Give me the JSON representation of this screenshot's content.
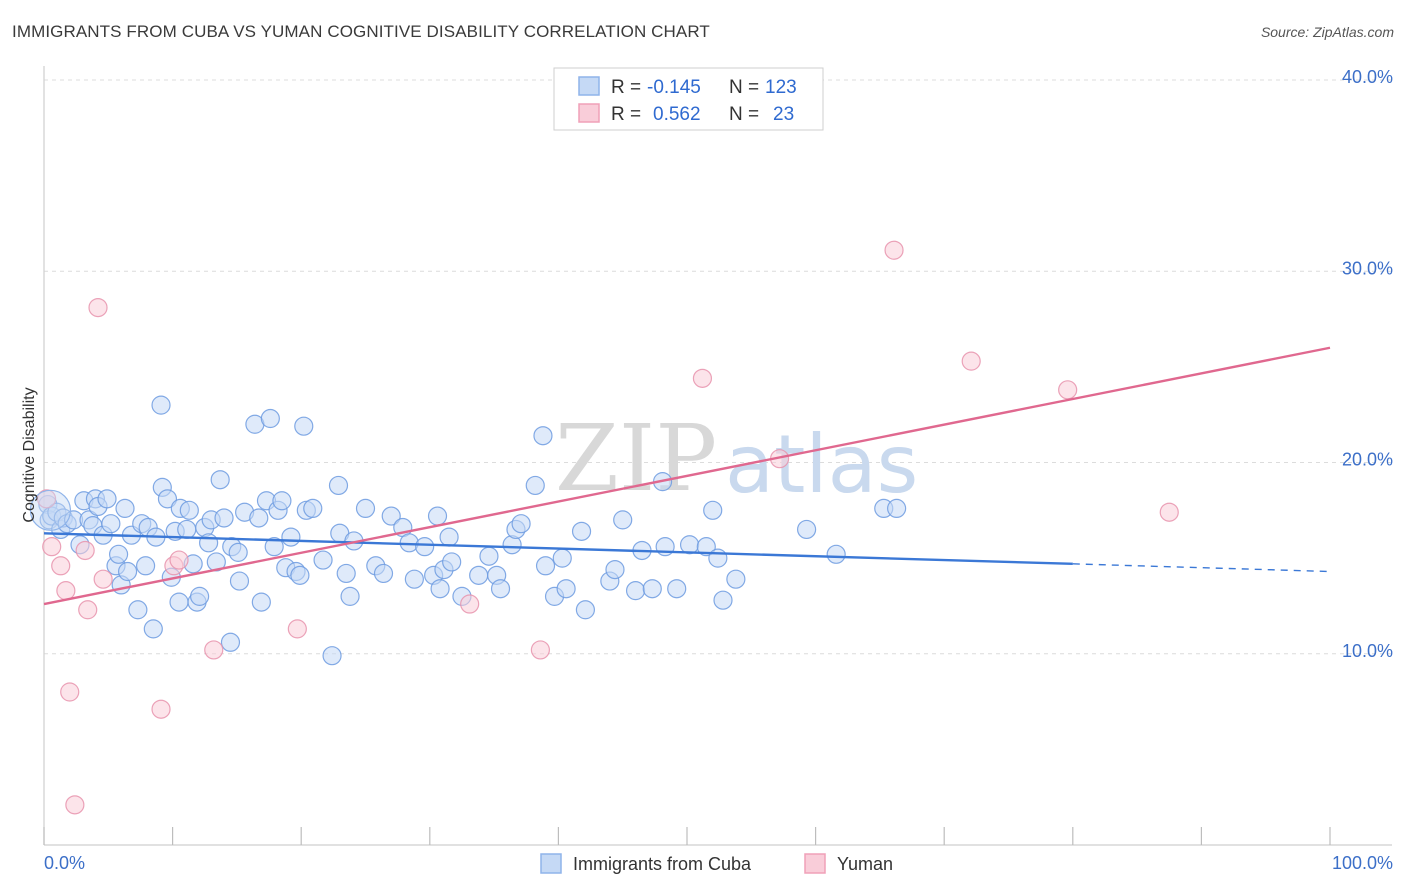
{
  "header": {
    "title": "IMMIGRANTS FROM CUBA VS YUMAN COGNITIVE DISABILITY CORRELATION CHART",
    "source": "Source: ZipAtlas.com"
  },
  "watermark": {
    "zip": "ZIP",
    "atlas": "atlas"
  },
  "legend": {
    "rows": [
      {
        "r_label": "R =",
        "r_value": "-0.145",
        "n_label": "N =",
        "n_value": "123",
        "color": "#8fb4ea",
        "fill": "#c5d9f5"
      },
      {
        "r_label": "R =",
        "r_value": "0.562",
        "n_label": "N =",
        "n_value": "23",
        "color": "#f0a0b8",
        "fill": "#f9cdd9"
      }
    ]
  },
  "bottom_legend": [
    {
      "label": "Immigrants from Cuba",
      "color": "#8fb4ea",
      "fill": "#c5d9f5"
    },
    {
      "label": "Yuman",
      "color": "#f0a0b8",
      "fill": "#f9cdd9"
    }
  ],
  "chart_data": {
    "type": "scatter",
    "title": "IMMIGRANTS FROM CUBA VS YUMAN COGNITIVE DISABILITY CORRELATION CHART",
    "xlabel": "",
    "ylabel": "Cognitive Disability",
    "xlim": [
      0,
      100
    ],
    "ylim": [
      0,
      40
    ],
    "x_tick_labels": [
      "0.0%",
      "100.0%"
    ],
    "y_ticks": [
      10,
      20,
      30,
      40
    ],
    "y_tick_labels": [
      "10.0%",
      "20.0%",
      "30.0%",
      "40.0%"
    ],
    "grid": true,
    "series": [
      {
        "name": "Immigrants from Cuba",
        "color": "#6d9be0",
        "fill": "#c5d9f5",
        "trend": {
          "x0": 0,
          "y0": 16.3,
          "x1": 80,
          "y1": 14.7,
          "dash_to_x": 100,
          "dash_to_y": 14.3,
          "color": "#3b78d6"
        },
        "points": [
          [
            0.3,
            17.8
          ],
          [
            0.4,
            17.0
          ],
          [
            0.6,
            17.2
          ],
          [
            1.0,
            17.4
          ],
          [
            1.3,
            16.5
          ],
          [
            1.5,
            17.1
          ],
          [
            1.8,
            16.8
          ],
          [
            2.3,
            17.0
          ],
          [
            2.8,
            15.7
          ],
          [
            3.1,
            18.0
          ],
          [
            3.5,
            17.0
          ],
          [
            3.8,
            16.7
          ],
          [
            4.0,
            18.1
          ],
          [
            4.2,
            17.7
          ],
          [
            4.6,
            16.2
          ],
          [
            4.9,
            18.1
          ],
          [
            5.2,
            16.8
          ],
          [
            5.6,
            14.6
          ],
          [
            5.8,
            15.2
          ],
          [
            6.0,
            13.6
          ],
          [
            6.3,
            17.6
          ],
          [
            6.5,
            14.3
          ],
          [
            6.8,
            16.2
          ],
          [
            7.3,
            12.3
          ],
          [
            7.6,
            16.8
          ],
          [
            7.9,
            14.6
          ],
          [
            8.1,
            16.6
          ],
          [
            8.5,
            11.3
          ],
          [
            8.7,
            16.1
          ],
          [
            9.1,
            23.0
          ],
          [
            9.2,
            18.7
          ],
          [
            9.6,
            18.1
          ],
          [
            9.9,
            14.0
          ],
          [
            10.2,
            16.4
          ],
          [
            10.5,
            12.7
          ],
          [
            10.6,
            17.6
          ],
          [
            11.1,
            16.5
          ],
          [
            11.3,
            17.5
          ],
          [
            11.6,
            14.7
          ],
          [
            11.9,
            12.7
          ],
          [
            12.1,
            13.0
          ],
          [
            12.5,
            16.6
          ],
          [
            12.8,
            15.8
          ],
          [
            13.0,
            17.0
          ],
          [
            13.4,
            14.8
          ],
          [
            13.7,
            19.1
          ],
          [
            14.0,
            17.1
          ],
          [
            14.5,
            10.6
          ],
          [
            14.6,
            15.6
          ],
          [
            15.1,
            15.3
          ],
          [
            15.2,
            13.8
          ],
          [
            15.6,
            17.4
          ],
          [
            16.4,
            22.0
          ],
          [
            16.7,
            17.1
          ],
          [
            16.9,
            12.7
          ],
          [
            17.3,
            18.0
          ],
          [
            17.6,
            22.3
          ],
          [
            17.9,
            15.6
          ],
          [
            18.2,
            17.5
          ],
          [
            18.5,
            18.0
          ],
          [
            18.8,
            14.5
          ],
          [
            19.2,
            16.1
          ],
          [
            19.6,
            14.3
          ],
          [
            19.9,
            14.1
          ],
          [
            20.2,
            21.9
          ],
          [
            20.4,
            17.5
          ],
          [
            20.9,
            17.6
          ],
          [
            21.7,
            14.9
          ],
          [
            22.4,
            9.9
          ],
          [
            22.9,
            18.8
          ],
          [
            23.0,
            16.3
          ],
          [
            23.5,
            14.2
          ],
          [
            23.8,
            13.0
          ],
          [
            24.1,
            15.9
          ],
          [
            25.0,
            17.6
          ],
          [
            25.8,
            14.6
          ],
          [
            26.4,
            14.2
          ],
          [
            27.0,
            17.2
          ],
          [
            27.9,
            16.6
          ],
          [
            28.4,
            15.8
          ],
          [
            28.8,
            13.9
          ],
          [
            29.6,
            15.6
          ],
          [
            30.3,
            14.1
          ],
          [
            30.6,
            17.2
          ],
          [
            30.8,
            13.4
          ],
          [
            31.1,
            14.4
          ],
          [
            31.5,
            16.1
          ],
          [
            31.7,
            14.8
          ],
          [
            32.5,
            13.0
          ],
          [
            33.8,
            14.1
          ],
          [
            34.6,
            15.1
          ],
          [
            35.2,
            14.1
          ],
          [
            35.5,
            13.4
          ],
          [
            36.4,
            15.7
          ],
          [
            36.7,
            16.5
          ],
          [
            37.1,
            16.8
          ],
          [
            38.2,
            18.8
          ],
          [
            38.8,
            21.4
          ],
          [
            39.0,
            14.6
          ],
          [
            39.7,
            13.0
          ],
          [
            40.3,
            15.0
          ],
          [
            40.6,
            13.4
          ],
          [
            41.8,
            16.4
          ],
          [
            42.1,
            12.3
          ],
          [
            44.0,
            13.8
          ],
          [
            44.4,
            14.4
          ],
          [
            45.0,
            17.0
          ],
          [
            46.0,
            13.3
          ],
          [
            46.5,
            15.4
          ],
          [
            47.3,
            13.4
          ],
          [
            48.1,
            19.0
          ],
          [
            48.3,
            15.6
          ],
          [
            49.2,
            13.4
          ],
          [
            50.2,
            15.7
          ],
          [
            51.5,
            15.6
          ],
          [
            52.0,
            17.5
          ],
          [
            52.4,
            15.0
          ],
          [
            52.8,
            12.8
          ],
          [
            53.8,
            13.9
          ],
          [
            59.3,
            16.5
          ],
          [
            61.6,
            15.2
          ],
          [
            65.3,
            17.6
          ],
          [
            66.3,
            17.6
          ]
        ]
      },
      {
        "name": "Yuman",
        "color": "#e893ad",
        "fill": "#f9cdd9",
        "trend": {
          "x0": 0,
          "y0": 12.6,
          "x1": 100,
          "y1": 26.0,
          "color": "#e0688f"
        },
        "points": [
          [
            0.2,
            18.1
          ],
          [
            0.6,
            15.6
          ],
          [
            1.3,
            14.6
          ],
          [
            1.7,
            13.3
          ],
          [
            2.0,
            8.0
          ],
          [
            2.4,
            2.1
          ],
          [
            3.2,
            15.4
          ],
          [
            3.4,
            12.3
          ],
          [
            4.2,
            28.1
          ],
          [
            4.6,
            13.9
          ],
          [
            9.1,
            7.1
          ],
          [
            10.1,
            14.6
          ],
          [
            10.5,
            14.9
          ],
          [
            13.2,
            10.2
          ],
          [
            19.7,
            11.3
          ],
          [
            33.1,
            12.6
          ],
          [
            38.6,
            10.2
          ],
          [
            51.2,
            24.4
          ],
          [
            57.2,
            20.2
          ],
          [
            66.1,
            31.1
          ],
          [
            72.1,
            25.3
          ],
          [
            79.6,
            23.8
          ],
          [
            87.5,
            17.4
          ]
        ]
      }
    ]
  }
}
